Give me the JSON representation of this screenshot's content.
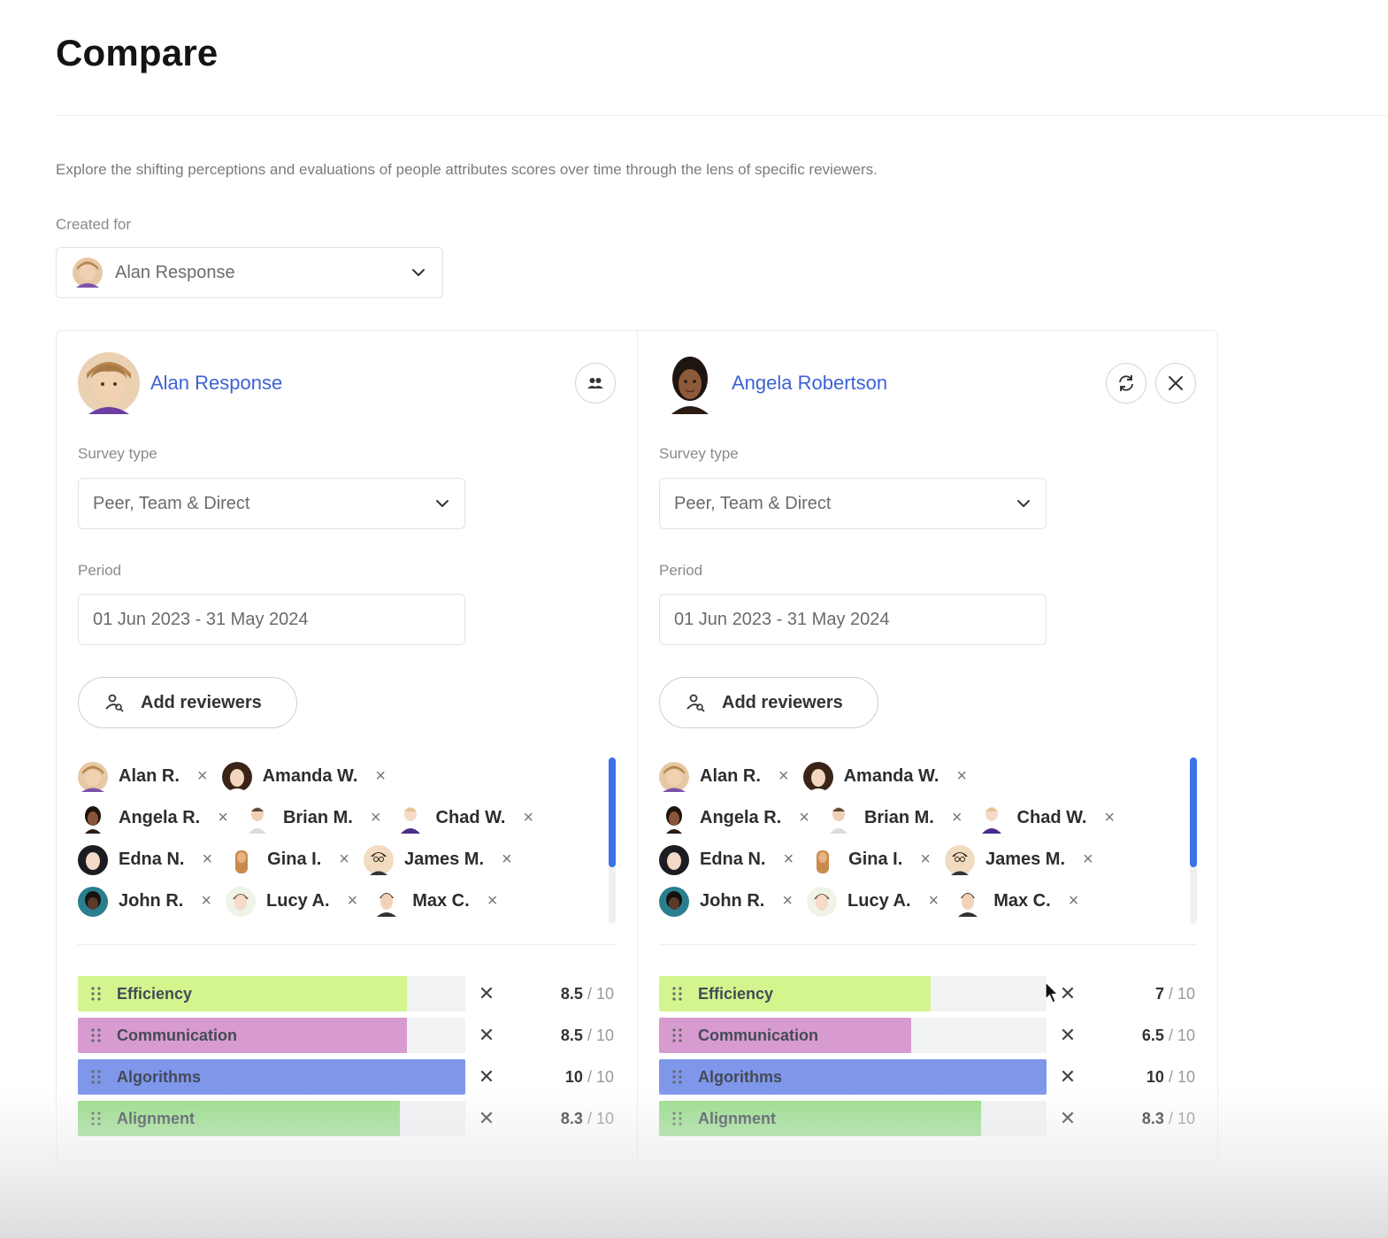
{
  "page": {
    "title": "Compare",
    "description": "Explore the shifting perceptions and evaluations of people attributes scores over time through the lens of specific reviewers.",
    "created_for_label": "Created for",
    "created_for_value": "Alan Response"
  },
  "columns": [
    {
      "person": "Alan Response",
      "survey_label": "Survey type",
      "survey_value": "Peer, Team & Direct",
      "period_label": "Period",
      "period_value": "01 Jun 2023 - 31 May 2024",
      "add_reviewers_label": "Add reviewers",
      "reviewer_rows": [
        [
          {
            "name": "Alan R.",
            "x": "×"
          },
          {
            "name": "Amanda W.",
            "x": "×"
          }
        ],
        [
          {
            "name": "Angela R.",
            "x": "×"
          },
          {
            "name": "Brian M.",
            "x": "×"
          },
          {
            "name": "Chad W.",
            "x": "×"
          }
        ],
        [
          {
            "name": "Edna N.",
            "x": "×"
          },
          {
            "name": "Gina I.",
            "x": "×"
          },
          {
            "name": "James M.",
            "x": "×"
          }
        ],
        [
          {
            "name": "John R.",
            "x": "×"
          },
          {
            "name": "Lucy A.",
            "x": "×"
          },
          {
            "name": "Max C.",
            "x": "×"
          }
        ]
      ],
      "attributes": [
        {
          "label": "Efficiency",
          "score": "8.5",
          "max": "/ 10",
          "value": 8.5
        },
        {
          "label": "Communication",
          "score": "8.5",
          "max": "/ 10",
          "value": 8.5
        },
        {
          "label": "Algorithms",
          "score": "10",
          "max": "/ 10",
          "value": 10
        },
        {
          "label": "Alignment",
          "score": "8.3",
          "max": "/ 10",
          "value": 8.3
        }
      ]
    },
    {
      "person": "Angela Robertson",
      "survey_label": "Survey type",
      "survey_value": "Peer, Team & Direct",
      "period_label": "Period",
      "period_value": "01 Jun 2023 - 31 May 2024",
      "add_reviewers_label": "Add reviewers",
      "reviewer_rows": [
        [
          {
            "name": "Alan R.",
            "x": "×"
          },
          {
            "name": "Amanda W.",
            "x": "×"
          }
        ],
        [
          {
            "name": "Angela R.",
            "x": "×"
          },
          {
            "name": "Brian M.",
            "x": "×"
          },
          {
            "name": "Chad W.",
            "x": "×"
          }
        ],
        [
          {
            "name": "Edna N.",
            "x": "×"
          },
          {
            "name": "Gina I.",
            "x": "×"
          },
          {
            "name": "James M.",
            "x": "×"
          }
        ],
        [
          {
            "name": "John R.",
            "x": "×"
          },
          {
            "name": "Lucy A.",
            "x": "×"
          },
          {
            "name": "Max C.",
            "x": "×"
          }
        ]
      ],
      "attributes": [
        {
          "label": "Efficiency",
          "score": "7",
          "max": "/ 10",
          "value": 7
        },
        {
          "label": "Communication",
          "score": "6.5",
          "max": "/ 10",
          "value": 6.5
        },
        {
          "label": "Algorithms",
          "score": "10",
          "max": "/ 10",
          "value": 10
        },
        {
          "label": "Alignment",
          "score": "8.3",
          "max": "/ 10",
          "value": 8.3
        }
      ]
    }
  ],
  "attribute_colors": {
    "Efficiency": "#d4f48e",
    "Communication": "#d89bcf",
    "Algorithms": "#7f97eb",
    "Alignment": "#99de8c"
  },
  "icons": {
    "column_1_action": "group-icon",
    "column_2_actions": [
      "swap-icon",
      "close-icon"
    ]
  }
}
